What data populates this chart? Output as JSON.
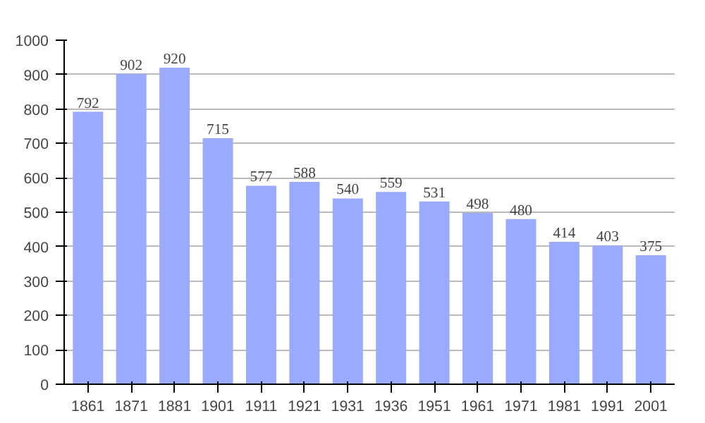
{
  "chart_data": {
    "type": "bar",
    "categories": [
      "1861",
      "1871",
      "1881",
      "1901",
      "1911",
      "1921",
      "1931",
      "1936",
      "1951",
      "1961",
      "1971",
      "1981",
      "1991",
      "2001"
    ],
    "values": [
      792,
      902,
      920,
      715,
      577,
      588,
      540,
      559,
      531,
      498,
      480,
      414,
      403,
      375
    ],
    "color": "#99aaff",
    "ylim": [
      0,
      1000
    ],
    "yticks": [
      0,
      100,
      200,
      300,
      400,
      500,
      600,
      700,
      800,
      900,
      1000
    ],
    "grid": "y",
    "data_labels": true
  }
}
